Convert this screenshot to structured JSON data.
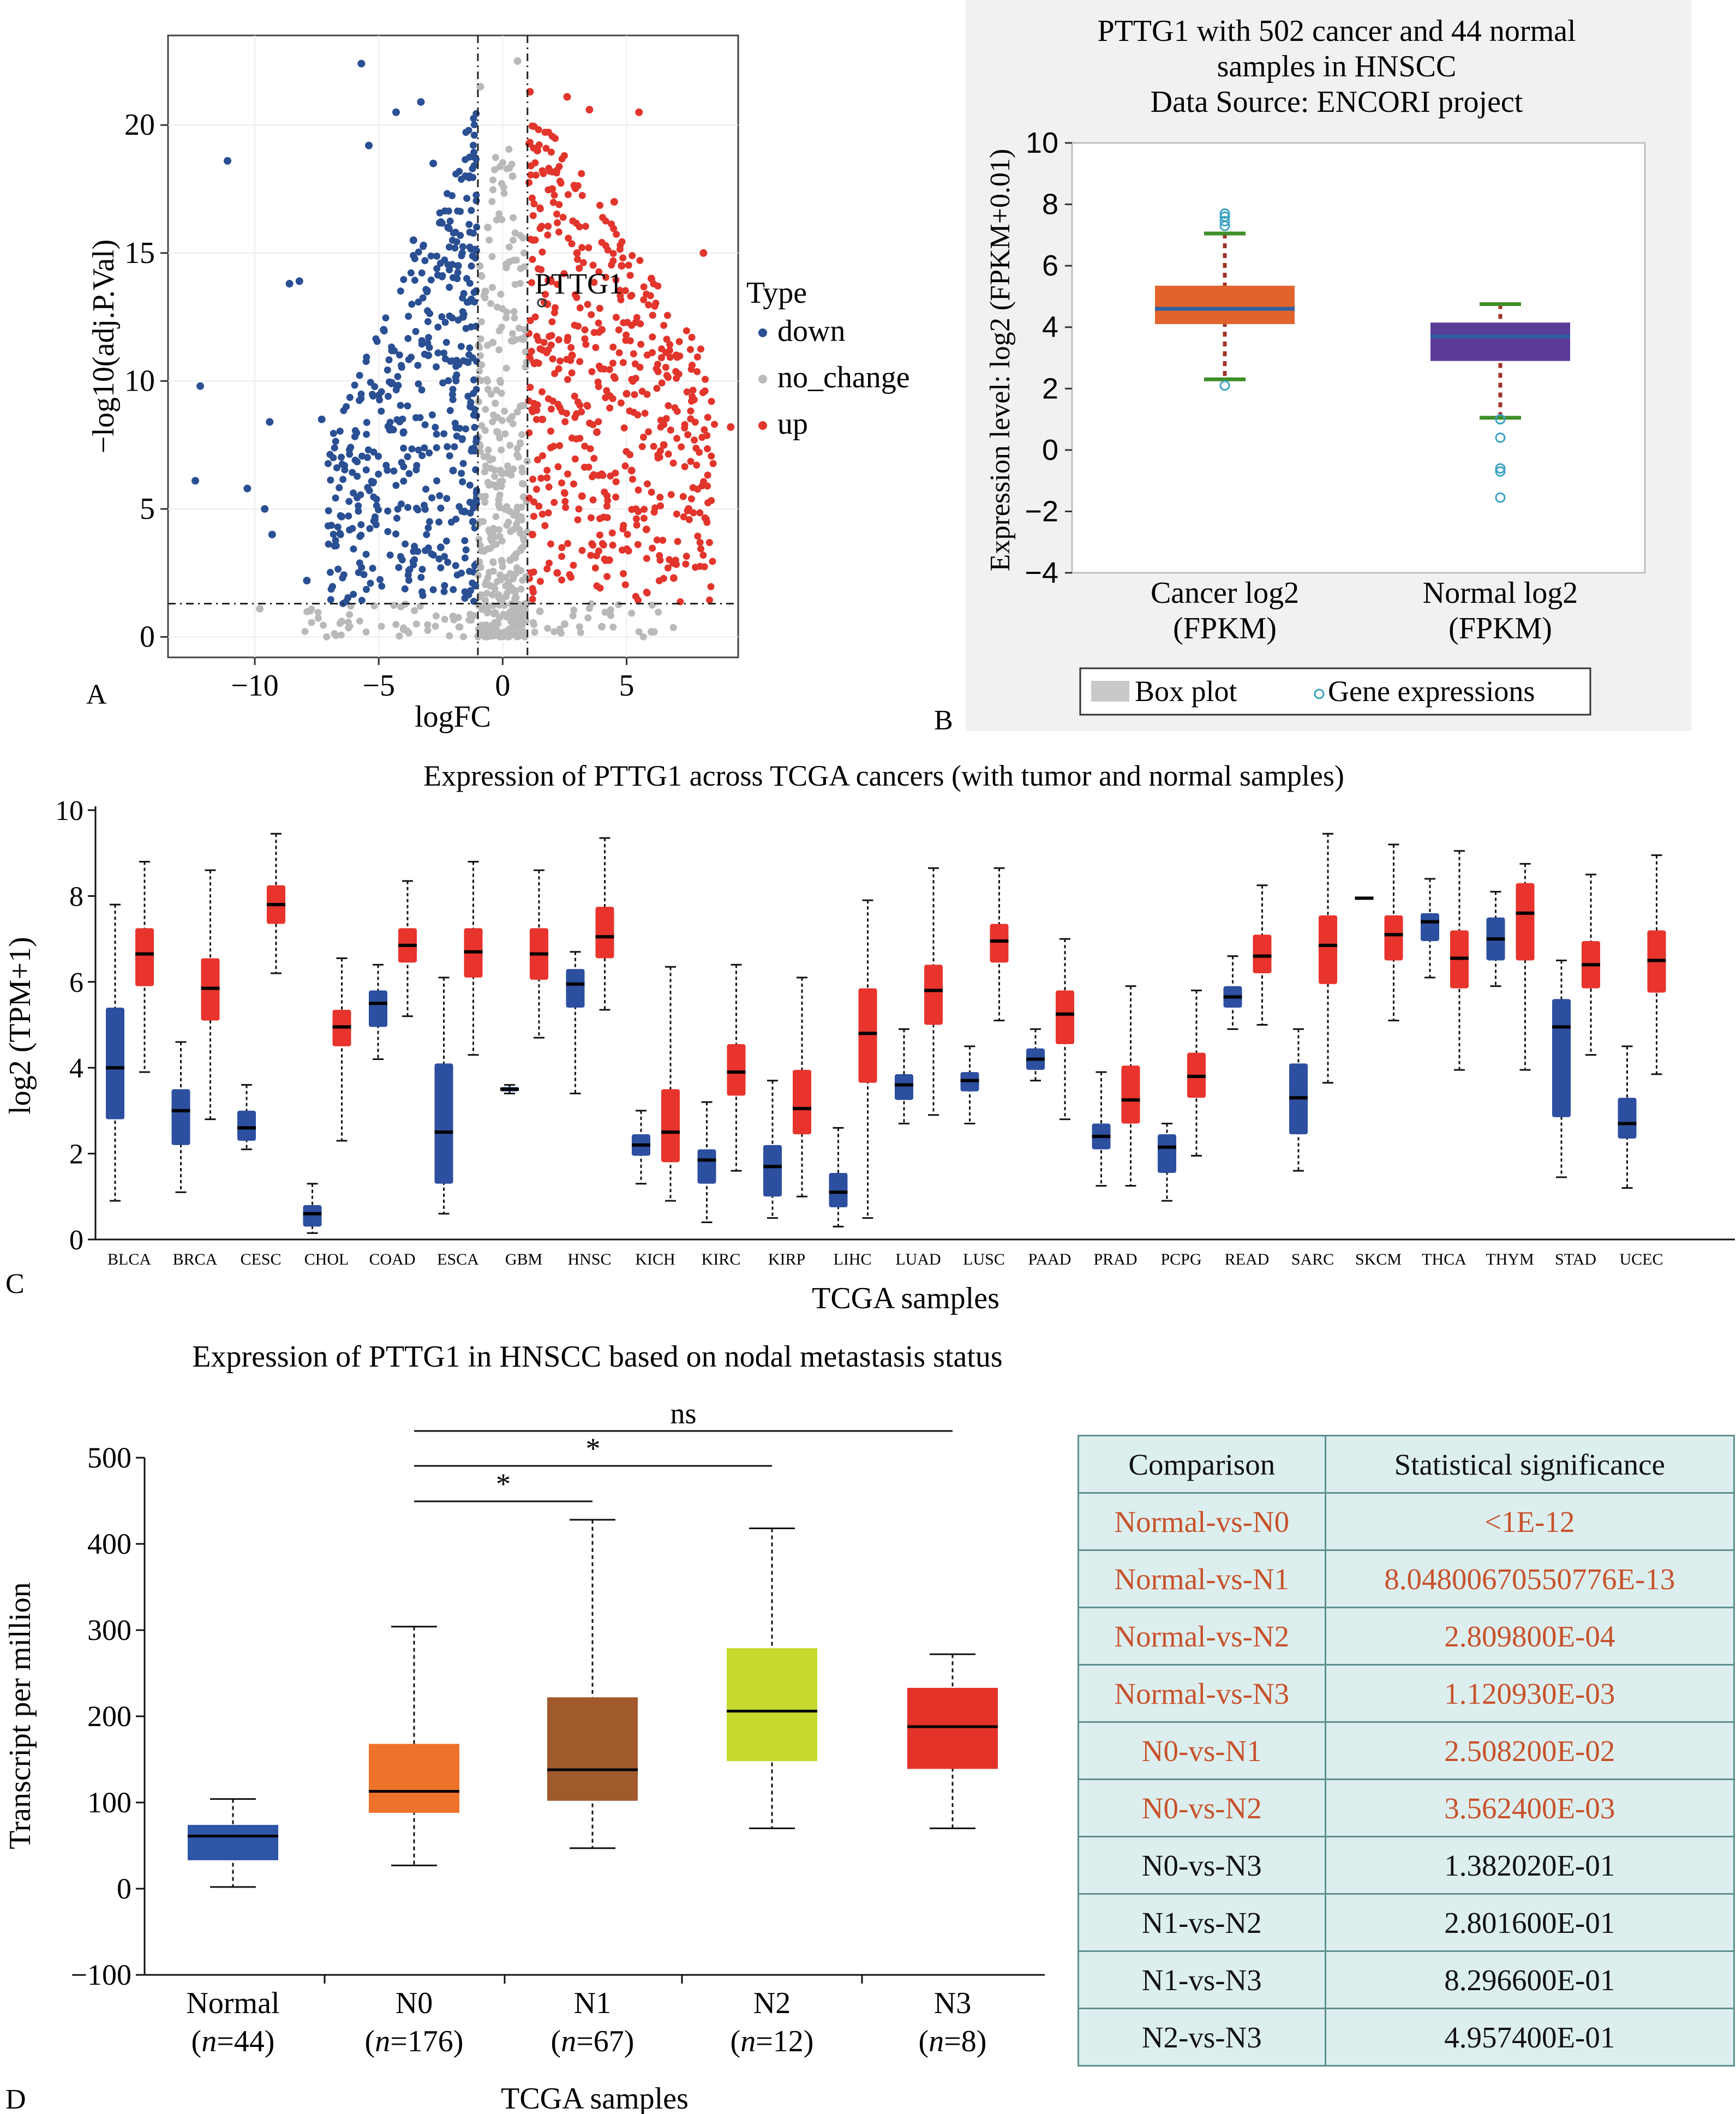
{
  "panel_labels": {
    "A": "A",
    "B": "B",
    "C": "C",
    "D": "D"
  },
  "chart_data": [
    {
      "panel": "A",
      "type": "scatter",
      "xlabel": "logFC",
      "ylabel": "−log10(adj.P.Val)",
      "xlim": [
        -13.5,
        9.5
      ],
      "ylim": [
        -0.8,
        23.5
      ],
      "xticks": [
        "−10",
        "−5",
        "0",
        "5"
      ],
      "xtick_values": [
        -10,
        -5,
        0,
        5
      ],
      "yticks": [
        "0",
        "5",
        "10",
        "15",
        "20"
      ],
      "ytick_values": [
        0,
        5,
        10,
        15,
        20
      ],
      "vlines": [
        -1,
        1
      ],
      "hline": 1.3,
      "legend_title": "Type",
      "series": [
        {
          "name": "down",
          "color": "#2a4f93"
        },
        {
          "name": "no_change",
          "color": "#b9b9b9"
        },
        {
          "name": "up",
          "color": "#e2352c"
        }
      ],
      "annotation": {
        "text": "PTTG1",
        "x": 1.3,
        "y": 13.8
      },
      "sample_points": {
        "down": [
          [
            -12.4,
            6.1
          ],
          [
            -12.2,
            9.8
          ],
          [
            -11.1,
            18.6
          ],
          [
            -10.3,
            5.8
          ],
          [
            -9.6,
            5.0
          ],
          [
            -9.4,
            8.4
          ],
          [
            -9.3,
            4.0
          ],
          [
            -8.6,
            13.8
          ],
          [
            -8.2,
            13.9
          ],
          [
            -7.9,
            2.2
          ],
          [
            -7.3,
            8.5
          ],
          [
            -6.5,
            4.7
          ],
          [
            -5.7,
            22.4
          ],
          [
            -5.4,
            19.2
          ],
          [
            -4.3,
            20.5
          ],
          [
            -3.3,
            20.9
          ],
          [
            -2.8,
            18.5
          ],
          [
            -2.2,
            16.0
          ],
          [
            -1.6,
            12.5
          ],
          [
            -1.3,
            9.0
          ],
          [
            -1.2,
            4.5
          ],
          [
            -1.1,
            2.0
          ],
          [
            -2.0,
            6.5
          ],
          [
            -3.0,
            11.0
          ],
          [
            -4.0,
            8.0
          ],
          [
            -2.5,
            3.5
          ],
          [
            -1.8,
            14.5
          ],
          [
            -3.6,
            15.5
          ],
          [
            -4.8,
            12.0
          ],
          [
            -1.5,
            18.0
          ]
        ],
        "no_change": [
          [
            -0.9,
            21.5
          ],
          [
            -0.6,
            16.0
          ],
          [
            -0.4,
            11.5
          ],
          [
            -0.2,
            8.0
          ],
          [
            0.1,
            5.0
          ],
          [
            0.3,
            3.0
          ],
          [
            0.5,
            1.5
          ],
          [
            0.7,
            0.8
          ],
          [
            0.9,
            12.0
          ],
          [
            -0.5,
            2.0
          ],
          [
            -0.3,
            0.4
          ],
          [
            0.2,
            0.2
          ],
          [
            1.5,
            1.0
          ],
          [
            2.5,
            0.5
          ],
          [
            4.0,
            0.4
          ],
          [
            6.0,
            0.2
          ],
          [
            -2.0,
            0.8
          ],
          [
            -4.0,
            0.3
          ],
          [
            -6.5,
            0.6
          ],
          [
            -9.8,
            1.1
          ],
          [
            0.6,
            22.5
          ],
          [
            0.4,
            18.0
          ],
          [
            -0.7,
            13.5
          ],
          [
            -0.1,
            6.5
          ]
        ],
        "up": [
          [
            1.1,
            21.3
          ],
          [
            1.4,
            19.0
          ],
          [
            2.0,
            17.5
          ],
          [
            2.6,
            21.1
          ],
          [
            3.0,
            15.0
          ],
          [
            3.5,
            20.6
          ],
          [
            4.0,
            12.0
          ],
          [
            4.5,
            17.0
          ],
          [
            5.0,
            9.5
          ],
          [
            5.5,
            20.5
          ],
          [
            6.0,
            14.0
          ],
          [
            6.5,
            7.5
          ],
          [
            7.0,
            11.0
          ],
          [
            7.5,
            5.0
          ],
          [
            8.1,
            15.0
          ],
          [
            9.2,
            8.2
          ],
          [
            1.2,
            4.0
          ],
          [
            1.6,
            8.5
          ],
          [
            2.2,
            2.5
          ],
          [
            3.2,
            5.5
          ],
          [
            4.3,
            3.0
          ],
          [
            5.8,
            4.2
          ],
          [
            6.9,
            2.3
          ],
          [
            2.8,
            11.0
          ],
          [
            1.8,
            13.0
          ],
          [
            3.8,
            8.0
          ],
          [
            4.8,
            14.5
          ],
          [
            5.2,
            6.5
          ]
        ]
      }
    },
    {
      "panel": "B",
      "type": "box",
      "title_lines": [
        "PTTG1 with 502 cancer and 44 normal",
        "samples in HNSCC",
        "Data Source: ENCORI project"
      ],
      "ylabel": "Expression level: log2 (FPKM+0.01)",
      "ylim": [
        -4,
        10
      ],
      "yticks": [
        "−4",
        "−2",
        "0",
        "2",
        "4",
        "6",
        "8",
        "10"
      ],
      "ytick_values": [
        -4,
        -2,
        0,
        2,
        4,
        6,
        8,
        10
      ],
      "categories": [
        [
          "Cancer log2",
          "(FPKM)"
        ],
        [
          "Normal log2",
          "(FPKM)"
        ]
      ],
      "boxes": [
        {
          "q1": 4.1,
          "median": 4.6,
          "q3": 5.35,
          "whislo": 2.3,
          "whishi": 7.05,
          "color": "#e0642b",
          "outliers": [
            2.1,
            7.3,
            7.45,
            7.6,
            7.7
          ]
        },
        {
          "q1": 2.9,
          "median": 3.7,
          "q3": 4.15,
          "whislo": 1.05,
          "whishi": 4.75,
          "color": "#5a3c97",
          "outliers": [
            1.0,
            0.4,
            -0.6,
            -0.7,
            -1.55
          ]
        }
      ],
      "legend": [
        "Box plot",
        "Gene expressions"
      ]
    },
    {
      "panel": "C",
      "type": "box",
      "title": "Expression of PTTG1 across TCGA cancers (with tumor and normal samples)",
      "xlabel": "TCGA samples",
      "ylabel": "log2 (TPM+1)",
      "ylim": [
        0,
        10
      ],
      "yticks": [
        "0",
        "2",
        "4",
        "6",
        "8",
        "10"
      ],
      "ytick_values": [
        0,
        2,
        4,
        6,
        8,
        10
      ],
      "categories": [
        "BLCA",
        "BRCA",
        "CESC",
        "CHOL",
        "COAD",
        "ESCA",
        "GBM",
        "HNSC",
        "KICH",
        "KIRC",
        "KIRP",
        "LIHC",
        "LUAD",
        "LUSC",
        "PAAD",
        "PRAD",
        "PCPG",
        "READ",
        "SARC",
        "SKCM",
        "THCA",
        "THYM",
        "STAD",
        "UCEC"
      ],
      "normal_color": "#2d4fa0",
      "tumor_color": "#e8342c",
      "normal": [
        {
          "q1": 2.8,
          "median": 4.0,
          "q3": 5.4,
          "lo": 0.9,
          "hi": 7.8
        },
        {
          "q1": 2.2,
          "median": 3.0,
          "q3": 3.5,
          "lo": 1.1,
          "hi": 4.6
        },
        {
          "q1": 2.3,
          "median": 2.6,
          "q3": 3.0,
          "lo": 2.1,
          "hi": 3.6
        },
        {
          "q1": 0.3,
          "median": 0.6,
          "q3": 0.8,
          "lo": 0.15,
          "hi": 1.3
        },
        {
          "q1": 4.95,
          "median": 5.5,
          "q3": 5.8,
          "lo": 4.2,
          "hi": 6.4
        },
        {
          "q1": 1.3,
          "median": 2.5,
          "q3": 4.1,
          "lo": 0.6,
          "hi": 6.1
        },
        {
          "q1": 3.45,
          "median": 3.5,
          "q3": 3.55,
          "lo": 3.4,
          "hi": 3.6
        },
        {
          "q1": 5.4,
          "median": 5.95,
          "q3": 6.3,
          "lo": 3.4,
          "hi": 6.7
        },
        {
          "q1": 1.95,
          "median": 2.2,
          "q3": 2.45,
          "lo": 1.3,
          "hi": 3.0
        },
        {
          "q1": 1.3,
          "median": 1.85,
          "q3": 2.1,
          "lo": 0.4,
          "hi": 3.2
        },
        {
          "q1": 1.0,
          "median": 1.7,
          "q3": 2.2,
          "lo": 0.5,
          "hi": 3.7
        },
        {
          "q1": 0.75,
          "median": 1.1,
          "q3": 1.55,
          "lo": 0.3,
          "hi": 2.6
        },
        {
          "q1": 3.25,
          "median": 3.6,
          "q3": 3.85,
          "lo": 2.7,
          "hi": 4.9
        },
        {
          "q1": 3.45,
          "median": 3.7,
          "q3": 3.9,
          "lo": 2.7,
          "hi": 4.5
        },
        {
          "q1": 3.95,
          "median": 4.2,
          "q3": 4.45,
          "lo": 3.7,
          "hi": 4.9
        },
        {
          "q1": 2.1,
          "median": 2.4,
          "q3": 2.7,
          "lo": 1.25,
          "hi": 3.9
        },
        {
          "q1": 1.55,
          "median": 2.15,
          "q3": 2.45,
          "lo": 0.9,
          "hi": 2.7
        },
        {
          "q1": 5.4,
          "median": 5.65,
          "q3": 5.9,
          "lo": 4.9,
          "hi": 6.6
        },
        {
          "q1": 2.45,
          "median": 3.3,
          "q3": 4.1,
          "lo": 1.6,
          "hi": 4.9
        },
        {
          "q1": 7.95,
          "median": 7.95,
          "q3": 7.95,
          "lo": 7.95,
          "hi": 7.95
        },
        {
          "q1": 6.95,
          "median": 7.4,
          "q3": 7.6,
          "lo": 6.1,
          "hi": 8.4
        },
        {
          "q1": 6.5,
          "median": 7.0,
          "q3": 7.5,
          "lo": 5.9,
          "hi": 8.1
        },
        {
          "q1": 2.85,
          "median": 4.95,
          "q3": 5.6,
          "lo": 1.45,
          "hi": 6.5
        },
        {
          "q1": 2.35,
          "median": 2.7,
          "q3": 3.3,
          "lo": 1.2,
          "hi": 4.5
        }
      ],
      "tumor": [
        {
          "q1": 5.9,
          "median": 6.65,
          "q3": 7.25,
          "lo": 3.9,
          "hi": 8.8
        },
        {
          "q1": 5.1,
          "median": 5.85,
          "q3": 6.55,
          "lo": 2.8,
          "hi": 8.6
        },
        {
          "q1": 7.35,
          "median": 7.8,
          "q3": 8.25,
          "lo": 6.2,
          "hi": 9.45
        },
        {
          "q1": 4.5,
          "median": 4.95,
          "q3": 5.35,
          "lo": 2.3,
          "hi": 6.55
        },
        {
          "q1": 6.45,
          "median": 6.85,
          "q3": 7.25,
          "lo": 5.2,
          "hi": 8.35
        },
        {
          "q1": 6.1,
          "median": 6.7,
          "q3": 7.25,
          "lo": 4.3,
          "hi": 8.8
        },
        {
          "q1": 6.05,
          "median": 6.65,
          "q3": 7.25,
          "lo": 4.7,
          "hi": 8.6
        },
        {
          "q1": 6.55,
          "median": 7.05,
          "q3": 7.75,
          "lo": 5.35,
          "hi": 9.35
        },
        {
          "q1": 1.8,
          "median": 2.5,
          "q3": 3.5,
          "lo": 0.9,
          "hi": 6.35
        },
        {
          "q1": 3.35,
          "median": 3.9,
          "q3": 4.55,
          "lo": 1.6,
          "hi": 6.4
        },
        {
          "q1": 2.45,
          "median": 3.05,
          "q3": 3.95,
          "lo": 1.0,
          "hi": 6.1
        },
        {
          "q1": 3.65,
          "median": 4.8,
          "q3": 5.85,
          "lo": 0.5,
          "hi": 7.9
        },
        {
          "q1": 5.0,
          "median": 5.8,
          "q3": 6.4,
          "lo": 2.9,
          "hi": 8.65
        },
        {
          "q1": 6.45,
          "median": 6.95,
          "q3": 7.35,
          "lo": 5.1,
          "hi": 8.65
        },
        {
          "q1": 4.55,
          "median": 5.25,
          "q3": 5.8,
          "lo": 2.8,
          "hi": 7.0
        },
        {
          "q1": 2.7,
          "median": 3.25,
          "q3": 4.05,
          "lo": 1.25,
          "hi": 5.9
        },
        {
          "q1": 3.3,
          "median": 3.8,
          "q3": 4.35,
          "lo": 1.95,
          "hi": 5.8
        },
        {
          "q1": 6.2,
          "median": 6.6,
          "q3": 7.1,
          "lo": 5.0,
          "hi": 8.25
        },
        {
          "q1": 5.95,
          "median": 6.85,
          "q3": 7.55,
          "lo": 3.65,
          "hi": 9.45
        },
        {
          "q1": 6.5,
          "median": 7.1,
          "q3": 7.55,
          "lo": 5.1,
          "hi": 9.2
        },
        {
          "q1": 5.85,
          "median": 6.55,
          "q3": 7.2,
          "lo": 3.95,
          "hi": 9.05
        },
        {
          "q1": 6.5,
          "median": 7.6,
          "q3": 8.3,
          "lo": 3.95,
          "hi": 8.75
        },
        {
          "q1": 5.85,
          "median": 6.4,
          "q3": 6.95,
          "lo": 4.3,
          "hi": 8.5
        },
        {
          "q1": 5.75,
          "median": 6.5,
          "q3": 7.2,
          "lo": 3.85,
          "hi": 8.95
        }
      ]
    },
    {
      "panel": "D",
      "type": "box",
      "title": "Expression of PTTG1 in HNSCC based on nodal metastasis status",
      "xlabel": "TCGA samples",
      "ylabel": "Transcript per million",
      "ylim": [
        -100,
        500
      ],
      "yticks": [
        "−100",
        "0",
        "100",
        "200",
        "300",
        "400",
        "500"
      ],
      "ytick_values": [
        -100,
        0,
        100,
        200,
        300,
        400,
        500
      ],
      "categories": [
        "Normal",
        "N0",
        "N1",
        "N2",
        "N3"
      ],
      "counts": [
        "44",
        "176",
        "67",
        "12",
        "8"
      ],
      "n_symbol": "n",
      "boxes": [
        {
          "q1": 33,
          "median": 61,
          "q3": 74,
          "lo": 2,
          "hi": 104,
          "color": "#2e56a6"
        },
        {
          "q1": 88,
          "median": 113,
          "q3": 168,
          "lo": 27,
          "hi": 304,
          "color": "#ef722a"
        },
        {
          "q1": 102,
          "median": 138,
          "q3": 222,
          "lo": 47,
          "hi": 428,
          "color": "#a05a2c"
        },
        {
          "q1": 148,
          "median": 206,
          "q3": 279,
          "lo": 70,
          "hi": 418,
          "color": "#c6d92e"
        },
        {
          "q1": 139,
          "median": 188,
          "q3": 233,
          "lo": 70,
          "hi": 272,
          "color": "#e43228"
        }
      ],
      "brackets": [
        {
          "from": "N0",
          "to": "N1",
          "label": "*"
        },
        {
          "from": "N0",
          "to": "N2",
          "label": "*"
        },
        {
          "from": "N0",
          "to": "N3",
          "label": "ns"
        }
      ]
    }
  ],
  "significance_table": {
    "headers": [
      "Comparison",
      "Statistical significance"
    ],
    "rows": [
      {
        "comparison": "Normal-vs-N0",
        "value": "<1E-12",
        "highlight": true
      },
      {
        "comparison": "Normal-vs-N1",
        "value": "8.04800670550776E-13",
        "highlight": true
      },
      {
        "comparison": "Normal-vs-N2",
        "value": "2.809800E-04",
        "highlight": true
      },
      {
        "comparison": "Normal-vs-N3",
        "value": "1.120930E-03",
        "highlight": true
      },
      {
        "comparison": "N0-vs-N1",
        "value": "2.508200E-02",
        "highlight": true
      },
      {
        "comparison": "N0-vs-N2",
        "value": "3.562400E-03",
        "highlight": true
      },
      {
        "comparison": "N0-vs-N3",
        "value": "1.382020E-01",
        "highlight": false
      },
      {
        "comparison": "N1-vs-N2",
        "value": "2.801600E-01",
        "highlight": false
      },
      {
        "comparison": "N1-vs-N3",
        "value": "8.296600E-01",
        "highlight": false
      },
      {
        "comparison": "N2-vs-N3",
        "value": "4.957400E-01",
        "highlight": false
      }
    ]
  }
}
